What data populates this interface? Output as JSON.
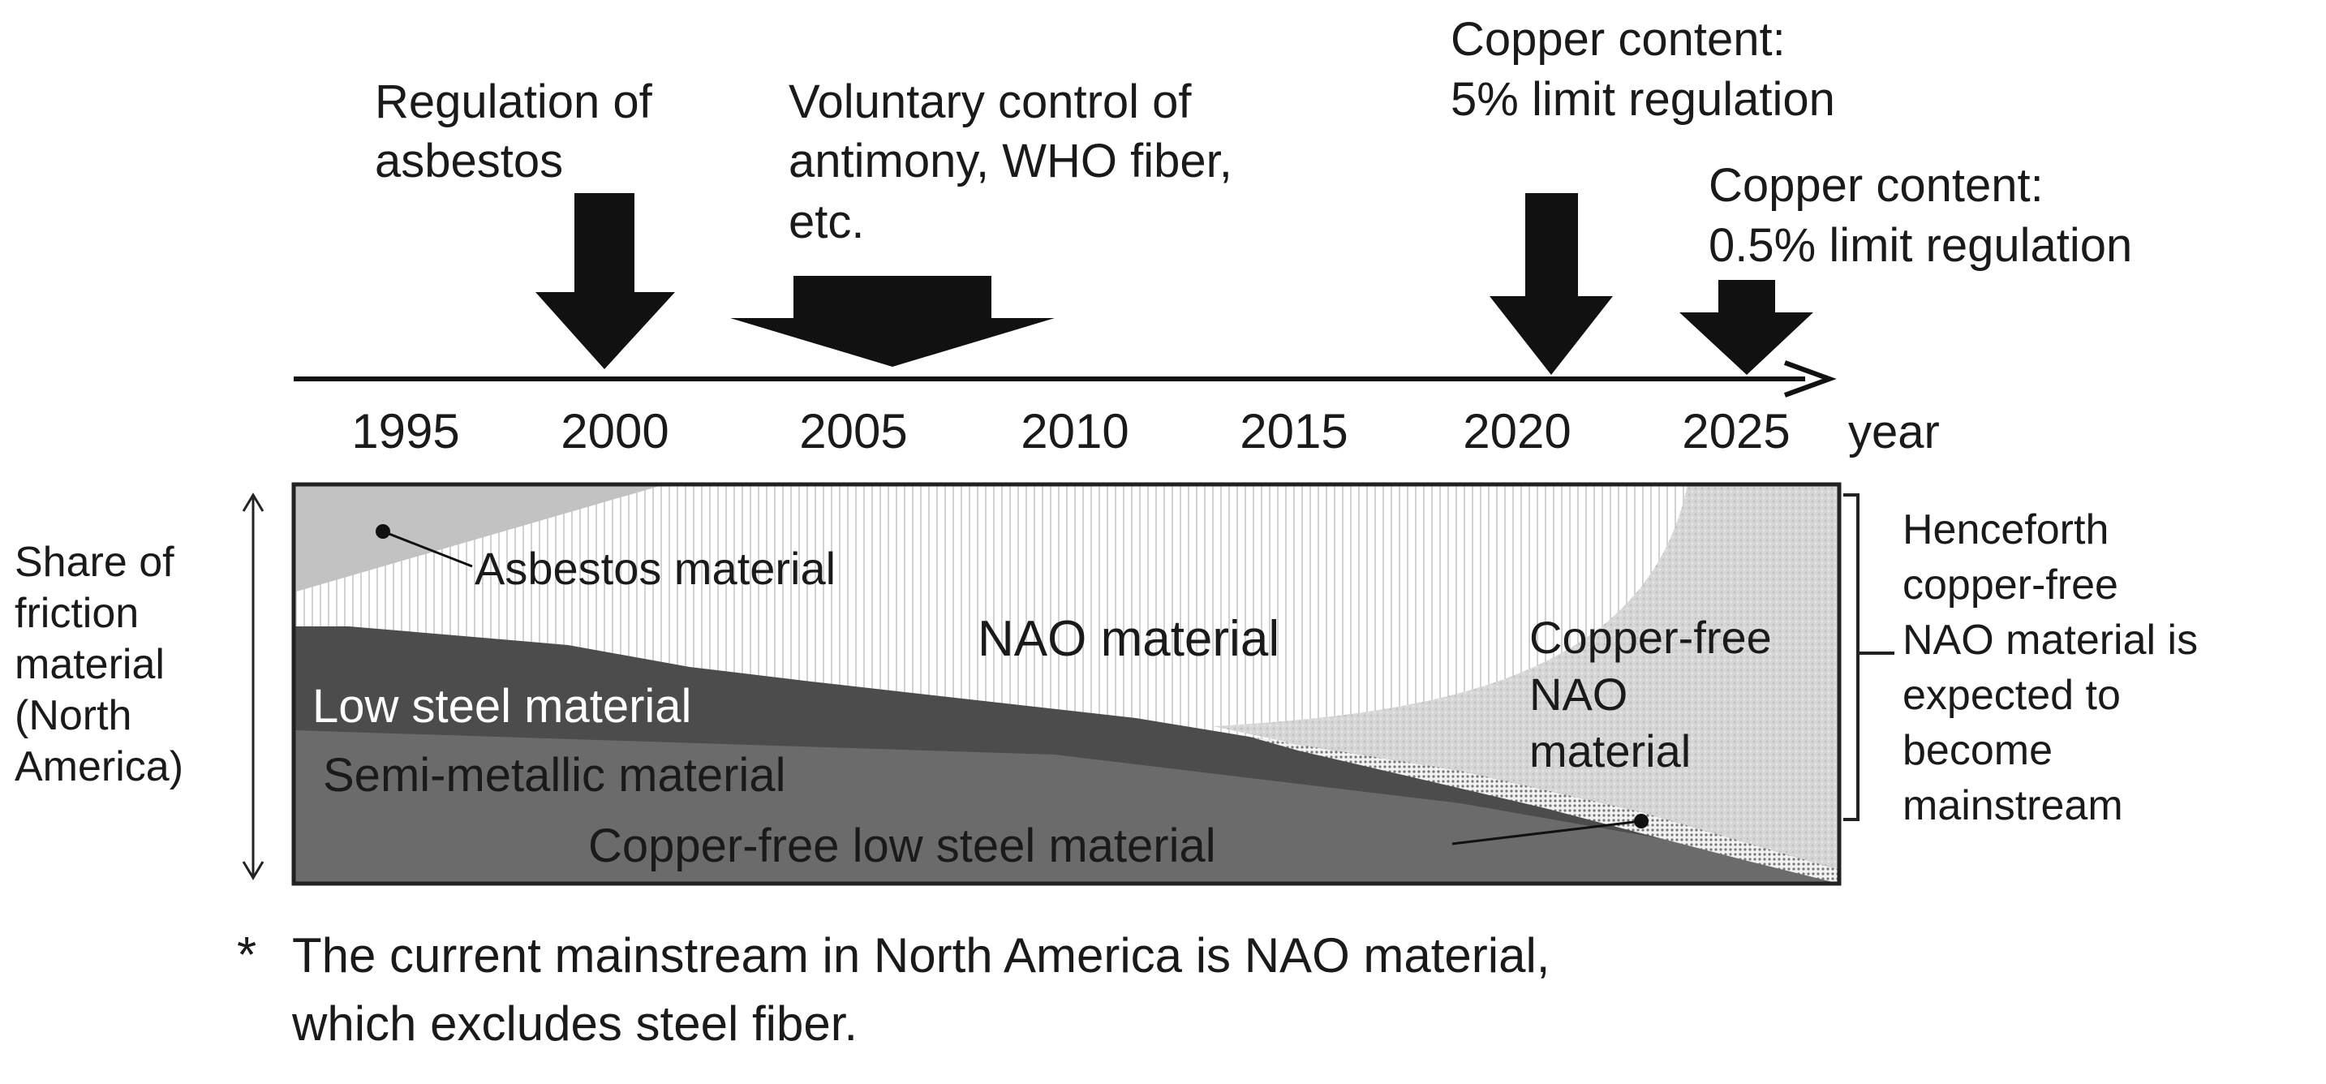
{
  "events": [
    {
      "id": "asbestos",
      "lines": [
        "Regulation of",
        "asbestos"
      ]
    },
    {
      "id": "antimony",
      "lines": [
        "Voluntary control of",
        "antimony, WHO fiber,",
        "etc."
      ]
    },
    {
      "id": "copper5",
      "lines": [
        "Copper content:",
        "5% limit regulation"
      ]
    },
    {
      "id": "copper05",
      "lines": [
        "Copper content:",
        "0.5% limit regulation"
      ]
    }
  ],
  "timeline": {
    "years": [
      "1995",
      "2000",
      "2005",
      "2010",
      "2015",
      "2020",
      "2025"
    ],
    "unit": "year"
  },
  "y_axis_label": [
    "Share of",
    "friction",
    "material",
    "(North",
    "America)"
  ],
  "regions": {
    "asbestos": "Asbestos material",
    "nao": "NAO material",
    "low_steel": "Low steel material",
    "semi_metallic": "Semi-metallic material",
    "copper_free_nao": [
      "Copper-free",
      "NAO",
      "material"
    ],
    "copper_free_low_steel": "Copper-free low steel material"
  },
  "side_note": [
    "Henceforth",
    "copper-free",
    "NAO material is",
    "expected to",
    "become",
    "mainstream"
  ],
  "footnote": {
    "mark": "*",
    "lines": [
      "The current mainstream in North America is NAO material,",
      "which excludes steel fiber."
    ]
  },
  "colors": {
    "asbestos": "#c2c2c2",
    "nao": "#ffffff",
    "low_steel": "#4c4c4c",
    "semi_metallic": "#6b6b6b",
    "copper_free_nao": "#d9d9d9",
    "arrow": "#111111"
  }
}
